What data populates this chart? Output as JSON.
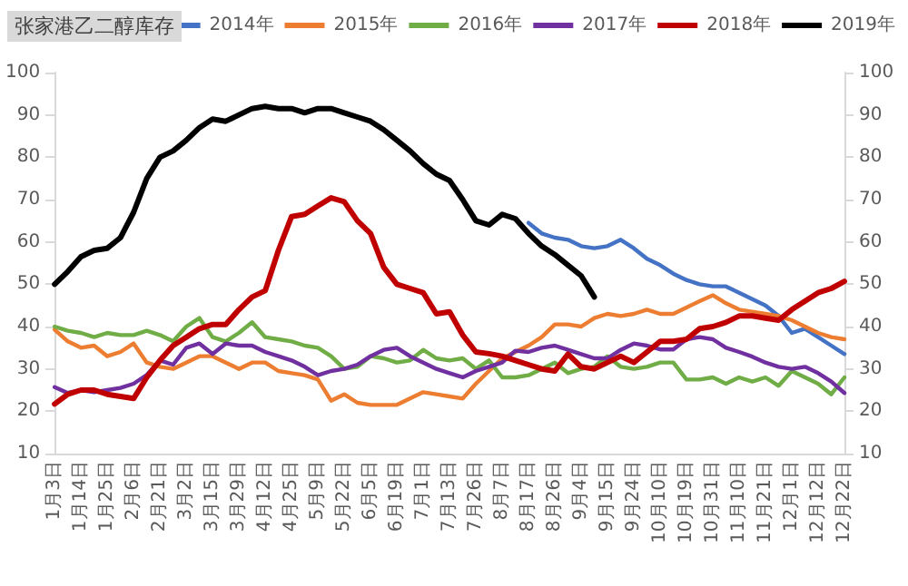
{
  "chart_data": {
    "type": "line",
    "title": "张家港乙二醇库存",
    "categories": [
      "1月3日",
      null,
      "1月14日",
      null,
      "1月25日",
      null,
      "2月6日",
      null,
      "2月21日",
      null,
      "3月2日",
      null,
      "3月15日",
      null,
      "3月29日",
      null,
      "4月12日",
      null,
      "4月25日",
      null,
      "5月9日",
      null,
      "5月22日",
      null,
      "6月5日",
      null,
      "6月19日",
      null,
      "7月1日",
      null,
      "7月13日",
      null,
      "7月26日",
      null,
      "8月7日",
      null,
      "8月17日",
      null,
      "8月26日",
      null,
      "9月4日",
      null,
      "9月15日",
      null,
      "9月24日",
      null,
      "10月10日",
      null,
      "10月19日",
      null,
      "10月31日",
      null,
      "11月10日",
      null,
      "11月21日",
      null,
      "12月1日",
      null,
      "12月12日",
      null,
      "12月22日"
    ],
    "series": [
      {
        "name": "2014年",
        "color": "#4472c4",
        "values": [
          null,
          null,
          null,
          null,
          null,
          null,
          null,
          null,
          null,
          null,
          null,
          null,
          null,
          null,
          null,
          null,
          null,
          null,
          null,
          null,
          null,
          null,
          null,
          null,
          null,
          null,
          null,
          null,
          null,
          null,
          null,
          null,
          null,
          null,
          null,
          null,
          64.5,
          62,
          61,
          60.5,
          59,
          58.5,
          59,
          60.5,
          58.5,
          56,
          54.5,
          52.5,
          51,
          50,
          49.5,
          49.5,
          48,
          46.5,
          45,
          42.5,
          38.5,
          39.5,
          37.5,
          35.5,
          33.5
        ]
      },
      {
        "name": "2015年",
        "color": "#ed7d31",
        "values": [
          39.3,
          36.5,
          35,
          35.5,
          33,
          34,
          36,
          31.5,
          30.5,
          30,
          31.5,
          33,
          33,
          31.5,
          30,
          31.5,
          31.5,
          29.5,
          29,
          28.5,
          27.5,
          22.5,
          24,
          22,
          21.5,
          21.5,
          21.5,
          23,
          24.5,
          24,
          23.5,
          23,
          26.5,
          29.5,
          32.5,
          34,
          35.5,
          37.5,
          40.5,
          40.5,
          40,
          42,
          43,
          42.5,
          43,
          44,
          43,
          43,
          44.5,
          46,
          47.4,
          45.5,
          44,
          43.5,
          43,
          42.5,
          41.5,
          40,
          38.5,
          37.5,
          37
        ]
      },
      {
        "name": "2016年",
        "color": "#70ad47",
        "values": [
          40,
          39,
          38.5,
          37.5,
          38.5,
          38,
          38,
          39,
          38,
          36.5,
          40,
          42,
          37.5,
          36.5,
          38.5,
          41,
          37.5,
          37,
          36.5,
          35.5,
          35,
          33,
          30,
          30.5,
          33,
          32.5,
          31.5,
          32,
          34.5,
          32.5,
          32,
          32.5,
          30,
          32,
          28,
          28,
          28.5,
          30,
          31.5,
          29,
          30,
          30.5,
          33,
          30.5,
          30,
          30.5,
          31.5,
          31.5,
          27.5,
          27.5,
          28,
          26.5,
          28,
          27,
          28,
          26,
          29.5,
          28,
          26.5,
          24,
          28
        ]
      },
      {
        "name": "2017年",
        "color": "#7030a0",
        "values": [
          25.7,
          24.3,
          25,
          24.5,
          25,
          25.5,
          26.5,
          28.6,
          32,
          31,
          35,
          36,
          33.5,
          36,
          35.5,
          35.5,
          34,
          33,
          32,
          30.5,
          28.5,
          29.5,
          30,
          31,
          33,
          34.5,
          35,
          33,
          31.5,
          30,
          29,
          28,
          29.5,
          30.5,
          31.5,
          34.3,
          34,
          35,
          35.5,
          34.5,
          33.5,
          32.5,
          32.5,
          34.5,
          36,
          35.5,
          34.6,
          34.6,
          37,
          37.5,
          37,
          35,
          34,
          32.9,
          31.5,
          30.5,
          30,
          30.5,
          29,
          27,
          24.3
        ]
      },
      {
        "name": "2018年",
        "color": "#c00000",
        "values": [
          21.7,
          24,
          25,
          25,
          24,
          23.5,
          23,
          28,
          32,
          35.5,
          37.5,
          39.5,
          40.5,
          40.5,
          44,
          47,
          48.5,
          58,
          66,
          66.5,
          68.5,
          70.4,
          69.5,
          65,
          62,
          54,
          50,
          49,
          48,
          43,
          43.5,
          38,
          34,
          33.6,
          33,
          32,
          31,
          30,
          29.5,
          33.5,
          30.5,
          30,
          31.5,
          33,
          31.5,
          34,
          36.5,
          36.5,
          37,
          39.5,
          40,
          41,
          42.5,
          42.5,
          42,
          41.5,
          44,
          46,
          48,
          49,
          50.7
        ]
      },
      {
        "name": "2019年",
        "color": "#000000",
        "values": [
          50,
          53,
          56.5,
          58,
          58.5,
          61,
          67,
          75,
          80,
          81.5,
          84,
          87,
          89,
          88.5,
          90,
          91.5,
          92,
          91.5,
          91.5,
          90.5,
          91.5,
          91.5,
          90.5,
          89.5,
          88.5,
          86.5,
          84,
          81.5,
          78.5,
          76,
          74.5,
          70,
          65,
          64,
          66.5,
          65.5,
          62,
          59,
          57,
          54.5,
          52,
          47,
          null,
          null,
          null,
          null,
          null,
          null,
          null,
          null,
          null,
          null,
          null,
          null,
          null,
          null,
          null,
          null,
          null,
          null,
          null
        ]
      }
    ],
    "ylim": [
      10,
      100
    ],
    "yticks": [
      10,
      20,
      30,
      40,
      50,
      60,
      70,
      80,
      90,
      100
    ],
    "y2lim": [
      10,
      100
    ],
    "y2ticks": [
      10,
      20,
      30,
      40,
      50,
      60,
      70,
      80,
      90,
      100
    ],
    "legend": "top right",
    "marker": "none",
    "line_style": "solid"
  }
}
